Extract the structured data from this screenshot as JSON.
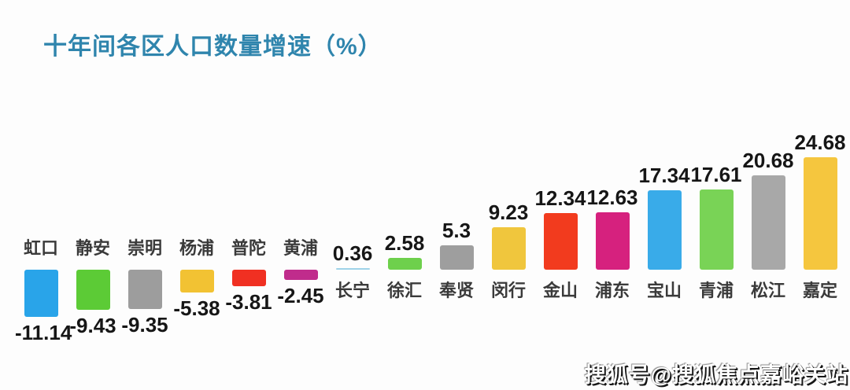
{
  "page": {
    "watermark": "搜狐号@搜狐焦点嘉峪关站"
  },
  "chart_data": {
    "type": "bar",
    "title": "十年间各区人口数量增速（%）",
    "xlabel": "",
    "ylabel": "",
    "unit": "%",
    "grid": false,
    "legend": "none",
    "value_labels_shown": true,
    "categories": [
      "虹口",
      "静安",
      "崇明",
      "杨浦",
      "普陀",
      "黄浦",
      "长宁",
      "徐汇",
      "奉贤",
      "闵行",
      "金山",
      "浦东",
      "宝山",
      "青浦",
      "松江",
      "嘉定"
    ],
    "values": [
      -11.14,
      -9.43,
      -9.35,
      -5.38,
      -3.81,
      -2.45,
      0.36,
      2.58,
      5.3,
      9.23,
      12.34,
      12.63,
      17.34,
      17.61,
      20.68,
      24.68
    ],
    "bar_colors": [
      "#29a4e9",
      "#5ccb36",
      "#9d9d9d",
      "#f2c233",
      "#f03022",
      "#c02c8c",
      "#9fd3e8",
      "#6ed04c",
      "#9e9e9e",
      "#f0c63d",
      "#f23b1e",
      "#d6217e",
      "#39abe9",
      "#79d356",
      "#a8a8a8",
      "#f5c63e"
    ],
    "colors": {
      "title_text": "#2f85ad",
      "value_text": "#161616",
      "category_text": "#3a3a3a",
      "background": "#fdfdfd"
    },
    "ylim": [
      -12,
      26
    ]
  }
}
